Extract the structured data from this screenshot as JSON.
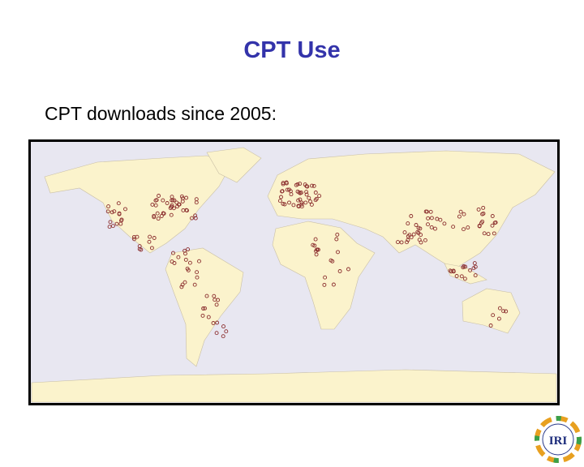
{
  "header": {
    "title": "CPT Use",
    "subtitle": "CPT downloads since 2005:"
  },
  "logo": {
    "text": "IRI"
  }
}
